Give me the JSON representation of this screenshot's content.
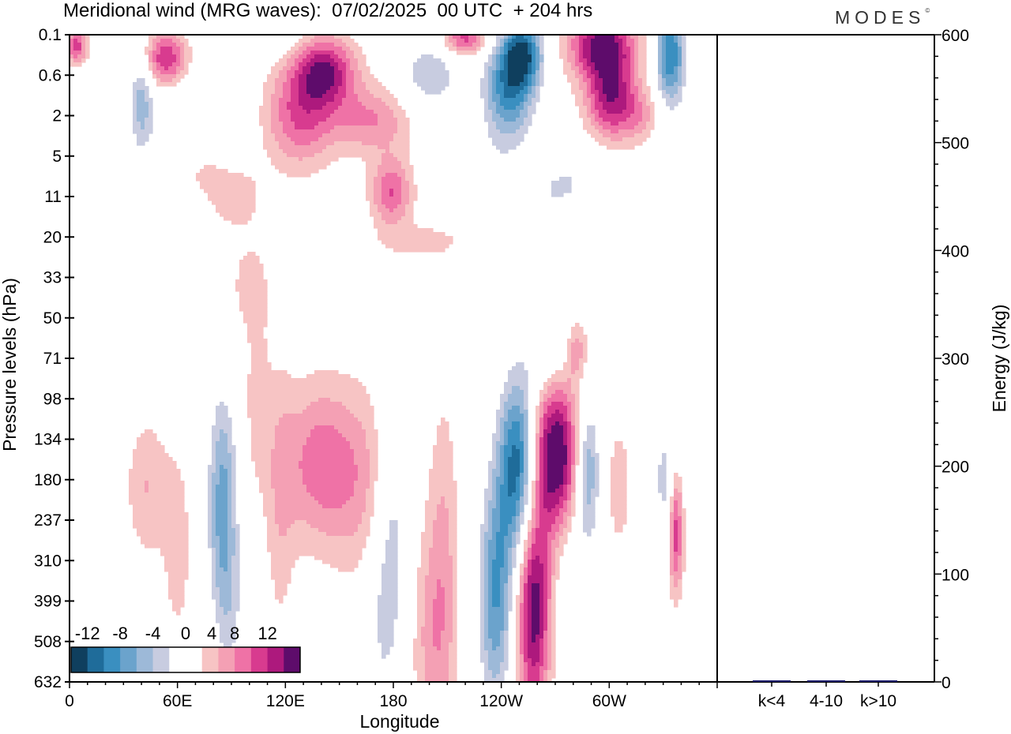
{
  "header": {
    "title": "Meridional wind (MRG waves):  07/02/2025  00 UTC  + 204 hrs",
    "logo": "MODES",
    "logo_mark": "©"
  },
  "chart_data": [
    {
      "type": "heatmap",
      "title": "Meridional wind (MRG waves):  07/02/2025  00 UTC  + 204 hrs",
      "xlabel": "Longitude",
      "ylabel": "Pressure levels (hPa)",
      "x_ticks": [
        "0",
        "60E",
        "120E",
        "180",
        "120W",
        "60W"
      ],
      "x_tick_degrees": [
        0,
        60,
        120,
        180,
        240,
        300
      ],
      "xlim": [
        0,
        360
      ],
      "y_ticks": [
        "0.1",
        "0.6",
        "2",
        "5",
        "11",
        "20",
        "33",
        "50",
        "71",
        "98",
        "134",
        "180",
        "237",
        "310",
        "399",
        "508",
        "632"
      ],
      "y_scale": "model-levels",
      "colorbar": {
        "tick_labels": [
          "-12",
          "-8",
          "-4",
          "0",
          "4",
          "8",
          "12"
        ],
        "levels": [
          -14,
          -12,
          -10,
          -8,
          -6,
          -4,
          -2,
          2,
          4,
          6,
          8,
          10,
          12,
          14
        ],
        "colors": [
          "#0f3f5e",
          "#1f6c9a",
          "#3a8fc0",
          "#6ba3cc",
          "#9db9d8",
          "#c8cce0",
          "#ffffff",
          "#ffffff",
          "#f7c4c4",
          "#f4a0b4",
          "#ef72a6",
          "#d83b8f",
          "#ad197d",
          "#5e0c6b"
        ]
      },
      "features": [
        {
          "lon": 4,
          "level": 0.28,
          "value": 9,
          "width": 4,
          "depth": 0.3
        },
        {
          "lon": 40,
          "level": 1.6,
          "value": -7,
          "width": 5,
          "depth": 1.0
        },
        {
          "lon": 54,
          "level": 0.6,
          "value": 11,
          "width": 10,
          "depth": 0.5
        },
        {
          "lon": 72,
          "level": 2.0,
          "value": -4,
          "width": 16,
          "depth": 1.5
        },
        {
          "lon": 110,
          "level": 0.15,
          "value": -4,
          "width": 12,
          "depth": 0.3
        },
        {
          "lon": 142,
          "level": 0.9,
          "value": 11,
          "width": 12,
          "depth": 0.6
        },
        {
          "lon": 128,
          "level": 2.0,
          "value": 8,
          "width": 14,
          "depth": 0.9
        },
        {
          "lon": 168,
          "level": 2.1,
          "value": 6,
          "width": 16,
          "depth": 0.6
        },
        {
          "lon": 200,
          "level": 1.0,
          "value": -6,
          "width": 12,
          "depth": 0.6
        },
        {
          "lon": 220,
          "level": 0.1,
          "value": 9,
          "width": 9,
          "depth": 0.3
        },
        {
          "lon": 252,
          "level": 0.45,
          "value": -12,
          "width": 8,
          "depth": 0.6
        },
        {
          "lon": 244,
          "level": 1.4,
          "value": -11,
          "width": 10,
          "depth": 0.9
        },
        {
          "lon": 296,
          "level": 0.25,
          "value": 13,
          "width": 13,
          "depth": 0.6
        },
        {
          "lon": 301,
          "level": 1.6,
          "value": 11,
          "width": 10,
          "depth": 0.7
        },
        {
          "lon": 334,
          "level": 0.5,
          "value": -12,
          "width": 6,
          "depth": 0.9
        },
        {
          "lon": 318,
          "level": 2.0,
          "value": 4,
          "width": 8,
          "depth": 0.5
        },
        {
          "lon": 179,
          "level": 3.9,
          "value": 8,
          "width": 8,
          "depth": 0.6
        },
        {
          "lon": 73,
          "level": 3.3,
          "value": 4,
          "width": 10,
          "depth": 0.5
        },
        {
          "lon": 228,
          "level": 3.3,
          "value": -2.5,
          "width": 14,
          "depth": 0.6
        },
        {
          "lon": 280,
          "level": 3.5,
          "value": -3,
          "width": 14,
          "depth": 0.6
        },
        {
          "lon": 335,
          "level": 4.2,
          "value": -3,
          "width": 10,
          "depth": 1.2
        },
        {
          "lon": 90,
          "level": 4.0,
          "value": 4,
          "width": 12,
          "depth": 0.6
        },
        {
          "lon": 265,
          "level": 4.1,
          "value": -2.5,
          "width": 14,
          "depth": 0.6
        },
        {
          "lon": 196,
          "level": 5.1,
          "value": 3,
          "width": 18,
          "depth": 0.3
        },
        {
          "lon": 150,
          "level": 5.4,
          "value": -2.5,
          "width": 10,
          "depth": 0.3
        },
        {
          "lon": 100,
          "level": 6.2,
          "value": 3,
          "width": 8,
          "depth": 0.8
        },
        {
          "lon": 26,
          "level": 6.1,
          "value": -2.5,
          "width": 9,
          "depth": 0.4
        },
        {
          "lon": 266,
          "level": 7.7,
          "value": -4,
          "width": 8,
          "depth": 0.7
        },
        {
          "lon": 282,
          "level": 7.8,
          "value": 5,
          "width": 4,
          "depth": 0.5
        },
        {
          "lon": 334,
          "level": 8.0,
          "value": -3,
          "width": 4,
          "depth": 0.7
        },
        {
          "lon": 104,
          "level": 9.0,
          "value": 3,
          "width": 5,
          "depth": 1.5
        },
        {
          "lon": 250,
          "level": 10.7,
          "value": -15,
          "width": 8,
          "depth": 1.6
        },
        {
          "lon": 270,
          "level": 10.4,
          "value": 15,
          "width": 10,
          "depth": 1.3
        },
        {
          "lon": 85,
          "level": 11.6,
          "value": -9,
          "width": 6,
          "depth": 2.0
        },
        {
          "lon": 139,
          "level": 10.6,
          "value": 7,
          "width": 15,
          "depth": 1.4
        },
        {
          "lon": 166,
          "level": 11.3,
          "value": 4,
          "width": 14,
          "depth": 1.8
        },
        {
          "lon": 180,
          "level": 11.8,
          "value": -5,
          "width": 7,
          "depth": 2.0
        },
        {
          "lon": 288,
          "level": 10.7,
          "value": -9,
          "width": 5,
          "depth": 1.2
        },
        {
          "lon": 305,
          "level": 11.2,
          "value": 3,
          "width": 6,
          "depth": 1.3
        },
        {
          "lon": 333,
          "level": 11.0,
          "value": -6,
          "width": 6,
          "depth": 1.0
        },
        {
          "lon": 337,
          "level": 12.0,
          "value": 11,
          "width": 3,
          "depth": 1.2
        },
        {
          "lon": 43,
          "level": 11.2,
          "value": 4,
          "width": 8,
          "depth": 1.2
        },
        {
          "lon": 117,
          "level": 11.6,
          "value": 3,
          "width": 6,
          "depth": 2.5
        },
        {
          "lon": 16,
          "level": 12.8,
          "value": -4,
          "width": 5,
          "depth": 1.2
        },
        {
          "lon": 60,
          "level": 12.7,
          "value": 3,
          "width": 6,
          "depth": 1.8
        },
        {
          "lon": 208,
          "level": 13.1,
          "value": 4,
          "width": 6,
          "depth": 3.0
        },
        {
          "lon": 237,
          "level": 13.9,
          "value": -10,
          "width": 7,
          "depth": 2.0
        },
        {
          "lon": 258,
          "level": 14.0,
          "value": 14,
          "width": 7,
          "depth": 2.0
        },
        {
          "lon": 174,
          "level": 14.4,
          "value": -4,
          "width": 8,
          "depth": 2.0
        },
        {
          "lon": 283,
          "level": 14.2,
          "value": -3,
          "width": 9,
          "depth": 2.0
        },
        {
          "lon": 200,
          "level": 15.0,
          "value": 4,
          "width": 8,
          "depth": 2.0
        },
        {
          "lon": 90,
          "level": 14.5,
          "value": -3,
          "width": 6,
          "depth": 1.5
        },
        {
          "lon": 330,
          "level": 15.6,
          "value": -3,
          "width": 6,
          "depth": 0.8
        }
      ]
    },
    {
      "type": "bar",
      "categories": [
        "k<4",
        "4-10",
        "k>10"
      ],
      "values": [
        0.4,
        1.2,
        0.3
      ],
      "ylabel": "Energy (J/kg)",
      "ylim": [
        0,
        600
      ],
      "y_ticks": [
        "0",
        "100",
        "200",
        "300",
        "400",
        "500",
        "600"
      ],
      "y_tick_values": [
        0,
        100,
        200,
        300,
        400,
        500,
        600
      ],
      "bar_color": "#1a1a6e"
    }
  ]
}
